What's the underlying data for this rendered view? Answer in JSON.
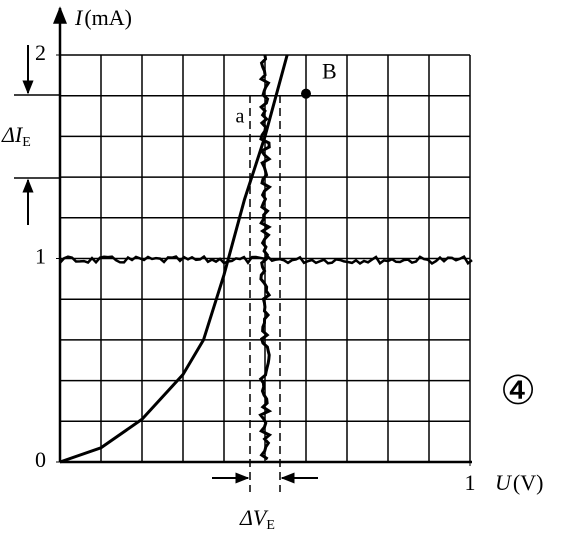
{
  "chart_data": {
    "type": "line",
    "y_label_symbol": "I",
    "y_label_unit": "(mA)",
    "x_label_symbol": "U",
    "x_label_unit": "(V)",
    "xlim": [
      0,
      1
    ],
    "ylim": [
      0,
      2
    ],
    "xticks": [
      1
    ],
    "yticks": [
      0,
      1,
      2
    ],
    "grid": true,
    "series": [
      {
        "name": "a",
        "color": "#000000",
        "x": [
          0,
          0.1,
          0.2,
          0.3,
          0.35,
          0.4,
          0.45,
          0.5,
          0.554
        ],
        "values": [
          0,
          0.07,
          0.21,
          0.43,
          0.6,
          0.92,
          1.29,
          1.6,
          2.0
        ]
      }
    ],
    "points": [
      {
        "name": "B",
        "x": 0.6,
        "y": 1.81
      }
    ],
    "annotations": {
      "delta_i": "ΔI",
      "delta_i_sub": "E",
      "delta_v": "ΔV",
      "delta_v_sub": "E",
      "figure_number": "④"
    }
  }
}
